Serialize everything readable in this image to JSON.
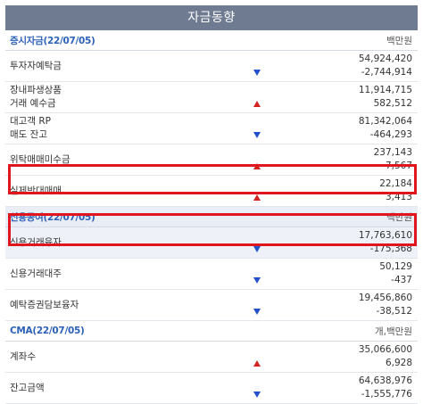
{
  "title": "자금동향",
  "sections": [
    {
      "header": "증시자금(22/07/05)",
      "unit": "백만원",
      "rows": [
        {
          "label": "투자자예탁금",
          "v1": "54,924,420",
          "v2": "-2,744,914",
          "dir": "down"
        },
        {
          "label": "장내파생상품\n거래 예수금",
          "v1": "11,914,715",
          "v2": "582,512",
          "dir": "up"
        },
        {
          "label": "대고객 RP\n매도 잔고",
          "v1": "81,342,064",
          "v2": "-464,293",
          "dir": "down"
        },
        {
          "label": "위탁매매미수금",
          "v1": "237,143",
          "v2": "7,567",
          "dir": "up"
        },
        {
          "label": "실제반대매매",
          "v1": "22,184",
          "v2": "3,413",
          "dir": "up"
        }
      ]
    },
    {
      "header": "신용공여(22/07/05)",
      "unit": "백만원",
      "rows": [
        {
          "label": "신용거래융자",
          "v1": "17,763,610",
          "v2": "-175,368",
          "dir": "down"
        },
        {
          "label": "신용거래대주",
          "v1": "50,129",
          "v2": "-437",
          "dir": "down"
        },
        {
          "label": "예탁증권담보융자",
          "v1": "19,456,860",
          "v2": "-38,512",
          "dir": "down"
        }
      ]
    },
    {
      "header": "CMA(22/07/05)",
      "unit": "개,백만원",
      "rows": [
        {
          "label": "계좌수",
          "v1": "35,066,600",
          "v2": "6,928",
          "dir": "up"
        },
        {
          "label": "잔고금액",
          "v1": "64,638,976",
          "v2": "-1,555,776",
          "dir": "down"
        }
      ]
    }
  ],
  "colors": {
    "up": "#d22323",
    "down": "#2350c8",
    "highlight_box": "#e0151e"
  }
}
